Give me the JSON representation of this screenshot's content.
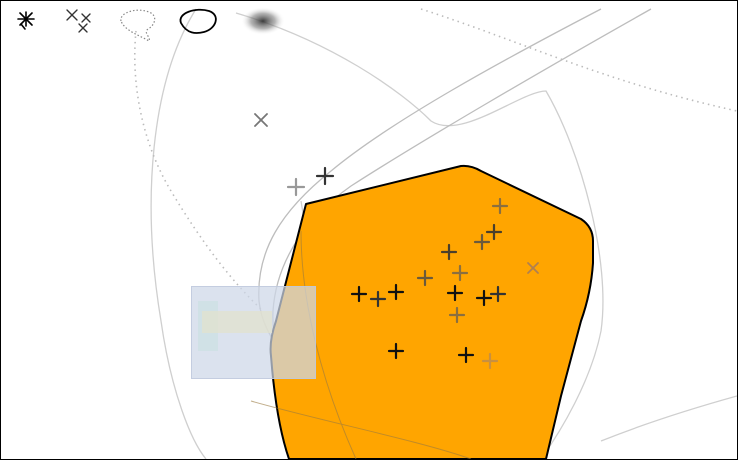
{
  "toolbar": {
    "tools": [
      {
        "id": "asterisk-tool",
        "icon": "asterisk-icon"
      },
      {
        "id": "cross-tool",
        "icon": "cross-cluster-icon"
      },
      {
        "id": "lasso-dotted-tool",
        "icon": "lasso-dotted-icon"
      },
      {
        "id": "lasso-solid-tool",
        "icon": "lasso-solid-icon"
      },
      {
        "id": "blur-tool",
        "icon": "blur-icon"
      }
    ]
  },
  "colors": {
    "selection_fill": "#FFA500",
    "selection_stroke": "#000000",
    "curve_gray": "#c8c8c8",
    "marker_dark": "#111111",
    "marker_mid": "#666666",
    "marker_light": "#999999"
  },
  "thumbnail_overlay": {
    "icon": "thumbnail-preview-icon"
  }
}
